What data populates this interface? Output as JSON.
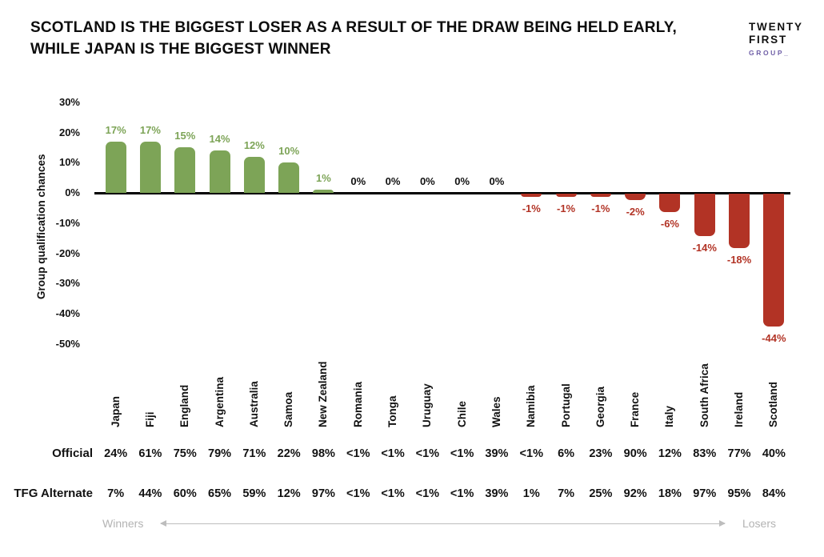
{
  "header": {
    "title_lines": [
      "SCOTLAND IS THE BIGGEST LOSER AS A RESULT OF THE DRAW BEING HELD EARLY,",
      "WHILE JAPAN IS THE BIGGEST WINNER"
    ],
    "logo": {
      "line1": "TWENTY",
      "line2": "FIRST",
      "line3": "GROUP_",
      "group_color": "#6f5fa7"
    }
  },
  "chart_data": {
    "type": "bar",
    "title": "Scotland is the biggest loser as a result of the draw being held early, while Japan is the biggest winner",
    "ylabel": "Group qualification chances",
    "categories": [
      "Japan",
      "Fiji",
      "England",
      "Argentina",
      "Australia",
      "Samoa",
      "New Zealand",
      "Romania",
      "Tonga",
      "Uruguay",
      "Chile",
      "Wales",
      "Namibia",
      "Portugal",
      "Georgia",
      "France",
      "Italy",
      "South Africa",
      "Ireland",
      "Scotland"
    ],
    "values": [
      17,
      17,
      15,
      14,
      12,
      10,
      1,
      0,
      0,
      0,
      0,
      0,
      -1,
      -1,
      -1,
      -2,
      -6,
      -14,
      -18,
      -44
    ],
    "bar_labels": [
      "17%",
      "17%",
      "15%",
      "14%",
      "12%",
      "10%",
      "1%",
      "0%",
      "0%",
      "0%",
      "0%",
      "0%",
      "-1%",
      "-1%",
      "-1%",
      "-2%",
      "-6%",
      "-14%",
      "-18%",
      "-44%"
    ],
    "yticks_pct": [
      30,
      20,
      10,
      0,
      -10,
      -20,
      -30,
      -40,
      -50
    ],
    "ylim": [
      -50,
      30
    ],
    "grid": false,
    "positive_color": "#7da457",
    "negative_color": "#b23325",
    "table_rows": [
      {
        "label": "Official",
        "values": [
          "24%",
          "61%",
          "75%",
          "79%",
          "71%",
          "22%",
          "98%",
          "<1%",
          "<1%",
          "<1%",
          "<1%",
          "39%",
          "<1%",
          "6%",
          "23%",
          "90%",
          "12%",
          "83%",
          "77%",
          "40%"
        ]
      },
      {
        "label": "TFG Alternate",
        "values": [
          "7%",
          "44%",
          "60%",
          "65%",
          "59%",
          "12%",
          "97%",
          "<1%",
          "<1%",
          "<1%",
          "<1%",
          "39%",
          "1%",
          "7%",
          "25%",
          "92%",
          "18%",
          "97%",
          "95%",
          "84%"
        ]
      }
    ]
  },
  "footer": {
    "left_label": "Winners",
    "right_label": "Losers"
  }
}
